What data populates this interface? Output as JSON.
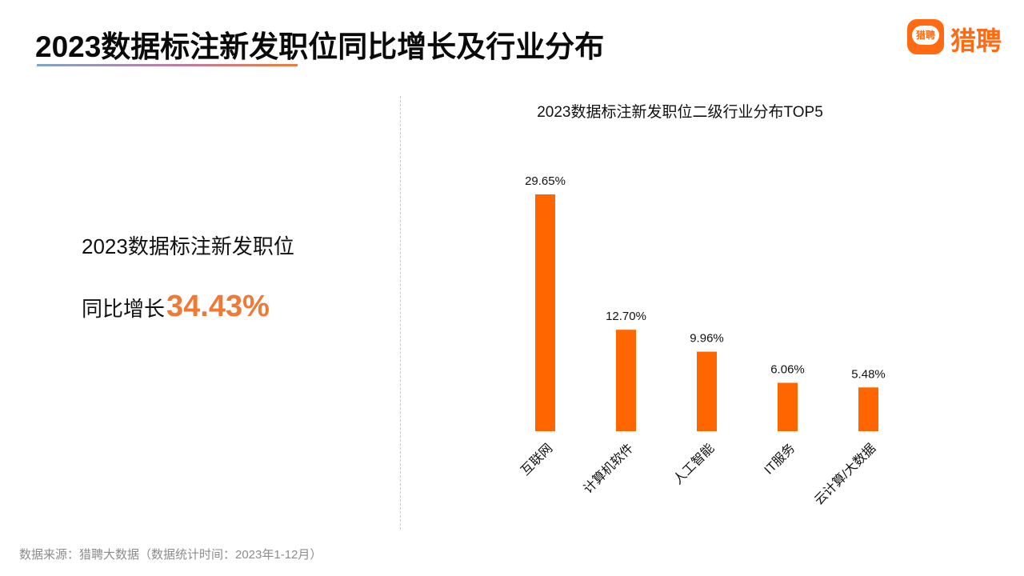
{
  "header": {
    "title": "2023数据标注新发职位同比增长及行业分布",
    "logo_badge_text": "猎聘",
    "logo_text": "猎聘",
    "accent_color": "#ff6a13"
  },
  "stat": {
    "line1": "2023数据标注新发职位",
    "line2_prefix": "同比增长",
    "value": "34.43%",
    "value_color": "#ee7a35"
  },
  "chart_data": {
    "type": "bar",
    "title": "2023数据标注新发职位二级行业分布TOP5",
    "categories": [
      "互联网",
      "计算机软件",
      "人工智能",
      "IT服务",
      "云计算/大数据"
    ],
    "values": [
      29.65,
      12.7,
      9.96,
      6.06,
      5.48
    ],
    "value_labels": [
      "29.65%",
      "12.70%",
      "9.96%",
      "6.06%",
      "5.48%"
    ],
    "unit": "%",
    "bar_color": "#ff6600",
    "ylim": [
      0,
      29.65
    ],
    "grid": false,
    "legend": "none"
  },
  "footer": {
    "source": "数据来源：猎聘大数据（数据统计时间：2023年1-12月）"
  }
}
